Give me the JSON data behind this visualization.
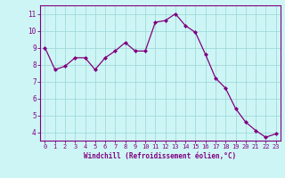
{
  "x": [
    0,
    1,
    2,
    3,
    4,
    5,
    6,
    7,
    8,
    9,
    10,
    11,
    12,
    13,
    14,
    15,
    16,
    17,
    18,
    19,
    20,
    21,
    22,
    23
  ],
  "y": [
    9.0,
    7.7,
    7.9,
    8.4,
    8.4,
    7.7,
    8.4,
    8.8,
    9.3,
    8.8,
    8.8,
    10.5,
    10.6,
    11.0,
    10.3,
    9.9,
    8.6,
    7.2,
    6.6,
    5.4,
    4.6,
    4.1,
    3.7,
    3.9
  ],
  "line_color": "#800080",
  "marker": "D",
  "marker_size": 2.0,
  "bg_color": "#cef5f5",
  "grid_color": "#a0dada",
  "xlabel": "Windchill (Refroidissement éolien,°C)",
  "xlabel_color": "#800080",
  "tick_color": "#800080",
  "axis_color": "#800080",
  "ylim": [
    3.5,
    11.5
  ],
  "xlim": [
    -0.5,
    23.5
  ],
  "yticks": [
    4,
    5,
    6,
    7,
    8,
    9,
    10,
    11
  ],
  "xticks": [
    0,
    1,
    2,
    3,
    4,
    5,
    6,
    7,
    8,
    9,
    10,
    11,
    12,
    13,
    14,
    15,
    16,
    17,
    18,
    19,
    20,
    21,
    22,
    23
  ],
  "tick_fontsize": 5.0,
  "xlabel_fontsize": 5.5,
  "ytick_fontsize": 5.5
}
